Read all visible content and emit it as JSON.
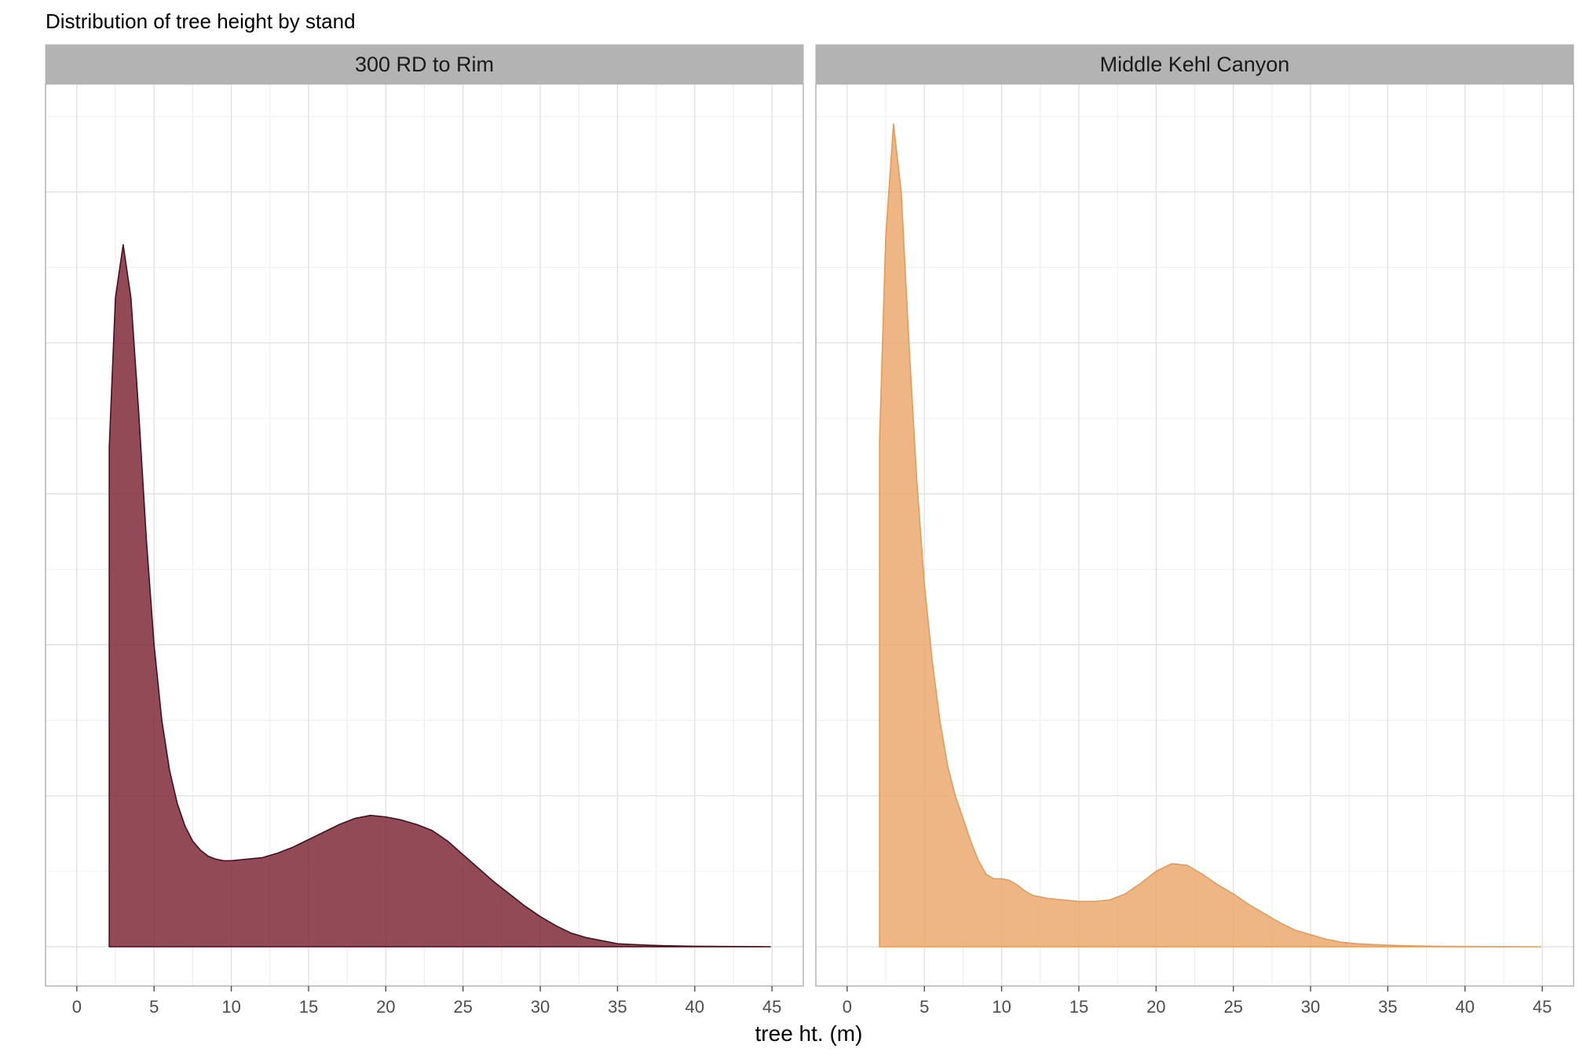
{
  "chart_data": {
    "type": "area",
    "title": "Distribution of tree height by stand",
    "xlabel": "tree ht. (m)",
    "ylabel": "",
    "xlim": [
      0,
      45
    ],
    "x_ticks": [
      "0",
      "5",
      "10",
      "15",
      "20",
      "25",
      "30",
      "35",
      "40",
      "45"
    ],
    "grid": true,
    "legend": "none",
    "panels": [
      {
        "label": "300 RD to Rim",
        "fill": "#7B2232",
        "fill_opacity": 0.82,
        "stroke": "#4A0F1C",
        "x": [
          2.1,
          2.5,
          3.0,
          3.5,
          4.0,
          4.5,
          5.0,
          5.5,
          6.0,
          6.5,
          7.0,
          7.5,
          8.0,
          8.5,
          9.0,
          9.5,
          10.0,
          11.0,
          12.0,
          13.0,
          14.0,
          15.0,
          16.0,
          17.0,
          18.0,
          19.0,
          20.0,
          21.0,
          22.0,
          23.0,
          24.0,
          25.0,
          26.0,
          27.0,
          28.0,
          29.0,
          30.0,
          31.0,
          32.0,
          33.0,
          34.0,
          35.0,
          36.0,
          37.0,
          38.0,
          39.0,
          40.0,
          42.0,
          44.0,
          44.9
        ],
        "y": [
          0.331,
          0.43,
          0.465,
          0.43,
          0.355,
          0.27,
          0.2,
          0.15,
          0.117,
          0.095,
          0.08,
          0.07,
          0.064,
          0.06,
          0.058,
          0.057,
          0.057,
          0.058,
          0.059,
          0.062,
          0.066,
          0.071,
          0.076,
          0.081,
          0.085,
          0.087,
          0.086,
          0.084,
          0.081,
          0.077,
          0.07,
          0.061,
          0.052,
          0.043,
          0.035,
          0.027,
          0.02,
          0.014,
          0.009,
          0.006,
          0.004,
          0.002,
          0.0015,
          0.001,
          0.0007,
          0.0005,
          0.0003,
          0.0002,
          0.0001,
          0.0
        ]
      },
      {
        "label": "Middle Kehl Canyon",
        "fill": "#EBA66A",
        "fill_opacity": 0.82,
        "stroke": "#E89A55",
        "x": [
          2.1,
          2.5,
          3.0,
          3.5,
          4.0,
          4.5,
          5.0,
          5.5,
          6.0,
          6.5,
          7.0,
          7.5,
          8.0,
          8.5,
          9.0,
          9.5,
          10.0,
          10.5,
          11.0,
          11.5,
          12.0,
          13.0,
          14.0,
          15.0,
          16.0,
          17.0,
          18.0,
          19.0,
          20.0,
          21.0,
          22.0,
          23.0,
          24.0,
          25.0,
          26.0,
          27.0,
          28.0,
          29.0,
          30.0,
          31.0,
          32.0,
          33.0,
          34.0,
          35.0,
          36.0,
          37.0,
          38.0,
          40.0,
          42.0,
          44.9
        ],
        "y": [
          0.335,
          0.47,
          0.545,
          0.5,
          0.4,
          0.31,
          0.24,
          0.19,
          0.15,
          0.12,
          0.1,
          0.085,
          0.07,
          0.057,
          0.048,
          0.045,
          0.045,
          0.044,
          0.041,
          0.037,
          0.034,
          0.032,
          0.031,
          0.03,
          0.03,
          0.031,
          0.035,
          0.042,
          0.05,
          0.055,
          0.054,
          0.048,
          0.041,
          0.035,
          0.028,
          0.022,
          0.016,
          0.011,
          0.008,
          0.005,
          0.003,
          0.002,
          0.0015,
          0.001,
          0.0007,
          0.0005,
          0.0003,
          0.0002,
          0.0001,
          0.0
        ]
      }
    ]
  }
}
